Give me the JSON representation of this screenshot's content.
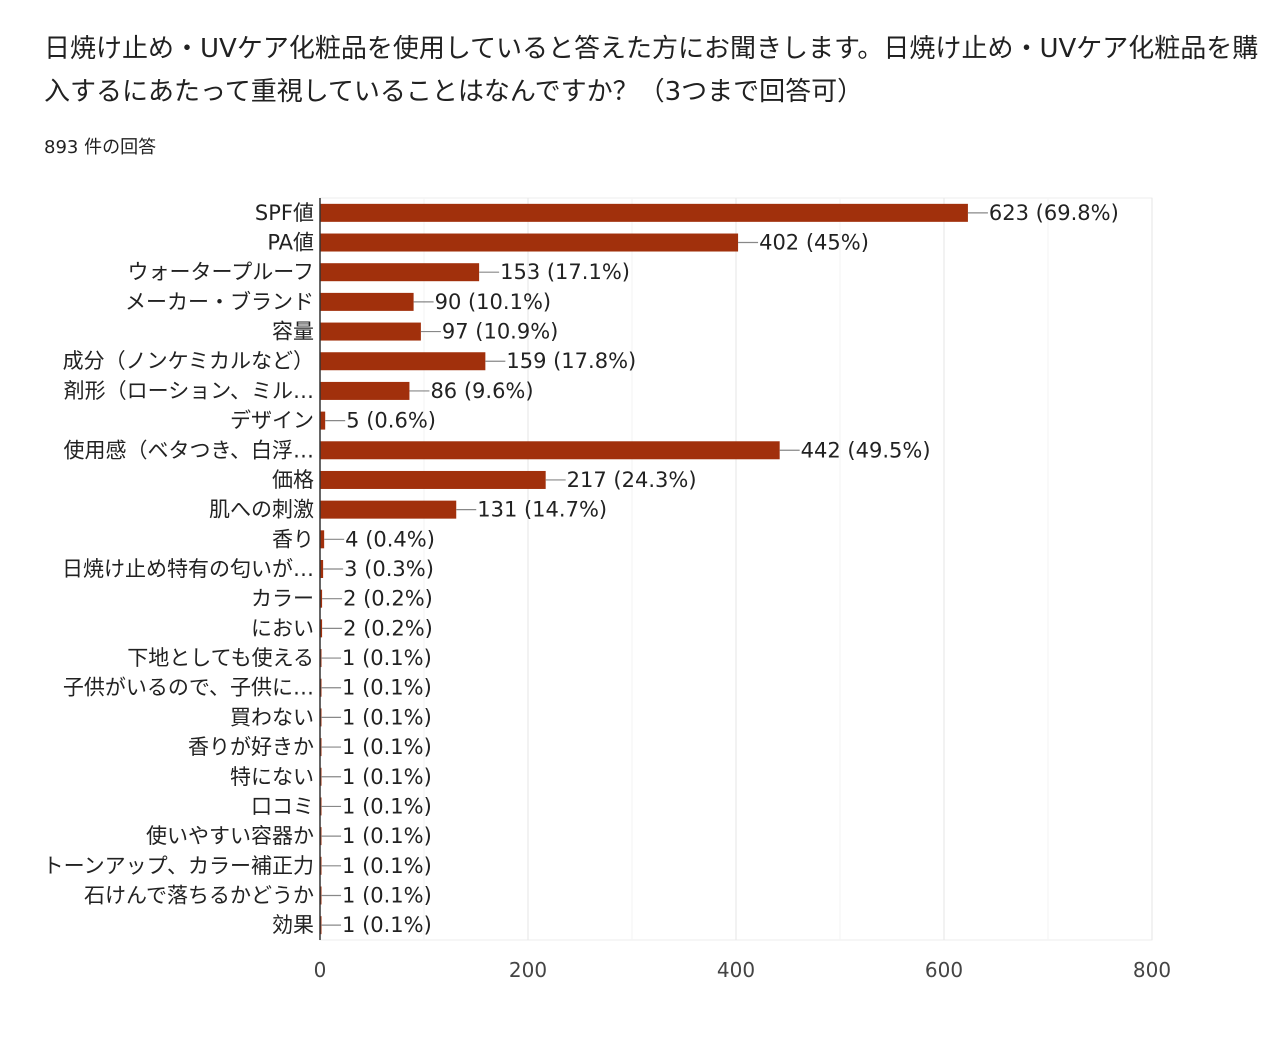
{
  "header": {
    "title": "日焼け止め・UVケア化粧品を使用していると答えた方にお聞きします。日焼け止め・UVケア化粧品を購入するにあたって重視していることはなんですか？（3つまで回答可）",
    "response_count": "893 件の回答"
  },
  "chart_data": {
    "type": "bar",
    "orientation": "horizontal",
    "categories": [
      "SPF値",
      "PA値",
      "ウォータープルーフ",
      "メーカー・ブランド",
      "容量",
      "成分（ノンケミカルなど）",
      "剤形（ローション、ミル…",
      "デザイン",
      "使用感（ベタつき、白浮…",
      "価格",
      "肌への刺激",
      "香り",
      "日焼け止め特有の匂いが…",
      "カラー",
      "におい",
      "下地としても使える",
      "子供がいるので、子供に…",
      "買わない",
      "香りが好きか",
      "特にない",
      "口コミ",
      "使いやすい容器か",
      "トーンアップ、カラー補正力",
      "石けんで落ちるかどうか",
      "効果"
    ],
    "values": [
      623,
      402,
      153,
      90,
      97,
      159,
      86,
      5,
      442,
      217,
      131,
      4,
      3,
      2,
      2,
      1,
      1,
      1,
      1,
      1,
      1,
      1,
      1,
      1,
      1
    ],
    "data_labels": [
      "623 (69.8%)",
      "402 (45%)",
      "153 (17.1%)",
      "90 (10.1%)",
      "97 (10.9%)",
      "159 (17.8%)",
      "86 (9.6%)",
      "5 (0.6%)",
      "442 (49.5%)",
      "217 (24.3%)",
      "131 (14.7%)",
      "4 (0.4%)",
      "3 (0.3%)",
      "2 (0.2%)",
      "2 (0.2%)",
      "1 (0.1%)",
      "1 (0.1%)",
      "1 (0.1%)",
      "1 (0.1%)",
      "1 (0.1%)",
      "1 (0.1%)",
      "1 (0.1%)",
      "1 (0.1%)",
      "1 (0.1%)",
      "1 (0.1%)"
    ],
    "xlim": [
      0,
      800
    ],
    "xticks": [
      "0",
      "200",
      "400",
      "600",
      "800"
    ],
    "grid": true,
    "bar_color": "#a1300c"
  }
}
